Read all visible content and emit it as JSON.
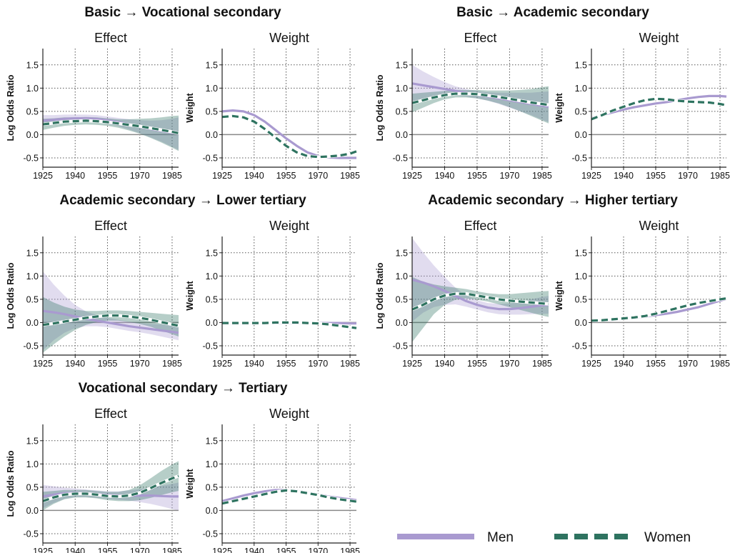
{
  "chart_data": {
    "type": "line",
    "x_ticks": [
      1925,
      1940,
      1955,
      1970,
      1985
    ],
    "y_ticks": [
      -0.5,
      0.0,
      0.5,
      1.0,
      1.5
    ],
    "y_tick_labels": [
      "-0.5",
      "0.0",
      "0.5",
      "1.0",
      "1.5"
    ],
    "xlim": [
      1925,
      1988
    ],
    "ylim": [
      -0.7,
      1.85
    ],
    "grid": "dotted",
    "colors": {
      "men": "#a99ad0",
      "women": "#2e7360"
    },
    "legend": {
      "position": "bottom-right",
      "items": [
        {
          "key": "men",
          "label": "Men",
          "style": "solid"
        },
        {
          "key": "women",
          "label": "Women",
          "style": "dashed"
        }
      ]
    },
    "x": [
      1925,
      1930,
      1935,
      1940,
      1945,
      1950,
      1955,
      1960,
      1965,
      1970,
      1975,
      1980,
      1985,
      1988
    ],
    "panels": [
      {
        "title": "Basic → Vocational secondary",
        "effect": {
          "subtitle": "Effect",
          "ylabel": "Log Odds Ratio",
          "men": [
            0.3,
            0.32,
            0.34,
            0.35,
            0.35,
            0.34,
            0.31,
            0.27,
            0.22,
            0.17,
            0.12,
            0.08,
            0.04,
            0.02
          ],
          "men_band": [
            0.12,
            0.1,
            0.09,
            0.08,
            0.08,
            0.08,
            0.08,
            0.09,
            0.11,
            0.14,
            0.18,
            0.23,
            0.3,
            0.35
          ],
          "women": [
            0.22,
            0.25,
            0.28,
            0.29,
            0.3,
            0.29,
            0.27,
            0.24,
            0.21,
            0.18,
            0.14,
            0.1,
            0.06,
            0.03
          ],
          "women_band": [
            0.12,
            0.1,
            0.09,
            0.08,
            0.08,
            0.08,
            0.08,
            0.09,
            0.12,
            0.16,
            0.21,
            0.27,
            0.34,
            0.38
          ]
        },
        "weight": {
          "subtitle": "Weight",
          "ylabel": "Weight",
          "men": [
            0.5,
            0.52,
            0.5,
            0.42,
            0.28,
            0.1,
            -0.08,
            -0.24,
            -0.38,
            -0.46,
            -0.49,
            -0.5,
            -0.5,
            -0.5
          ],
          "women": [
            0.38,
            0.4,
            0.37,
            0.28,
            0.12,
            -0.06,
            -0.24,
            -0.38,
            -0.46,
            -0.48,
            -0.47,
            -0.45,
            -0.41,
            -0.36
          ]
        }
      },
      {
        "title": "Basic → Academic secondary",
        "effect": {
          "subtitle": "Effect",
          "ylabel": "Log Odds Ratio",
          "men": [
            1.1,
            1.06,
            1.02,
            0.98,
            0.94,
            0.9,
            0.86,
            0.82,
            0.78,
            0.74,
            0.7,
            0.66,
            0.62,
            0.6
          ],
          "men_band": [
            0.4,
            0.3,
            0.22,
            0.15,
            0.1,
            0.08,
            0.08,
            0.09,
            0.12,
            0.16,
            0.2,
            0.24,
            0.3,
            0.33
          ],
          "women": [
            0.68,
            0.74,
            0.8,
            0.85,
            0.88,
            0.88,
            0.87,
            0.84,
            0.81,
            0.77,
            0.73,
            0.69,
            0.66,
            0.64
          ],
          "women_band": [
            0.2,
            0.16,
            0.12,
            0.09,
            0.08,
            0.08,
            0.09,
            0.11,
            0.14,
            0.18,
            0.23,
            0.29,
            0.36,
            0.4
          ]
        },
        "weight": {
          "subtitle": "Weight",
          "ylabel": "Weight",
          "men": [
            0.35,
            0.42,
            0.48,
            0.54,
            0.59,
            0.63,
            0.67,
            0.7,
            0.74,
            0.78,
            0.81,
            0.83,
            0.83,
            0.82
          ],
          "women": [
            0.33,
            0.42,
            0.52,
            0.6,
            0.68,
            0.74,
            0.77,
            0.76,
            0.73,
            0.71,
            0.7,
            0.69,
            0.66,
            0.63
          ]
        }
      },
      {
        "title": "Academic secondary → Lower tertiary",
        "effect": {
          "subtitle": "Effect",
          "ylabel": "Log Odds Ratio",
          "men": [
            0.25,
            0.22,
            0.18,
            0.13,
            0.08,
            0.04,
            0.0,
            -0.04,
            -0.08,
            -0.11,
            -0.14,
            -0.17,
            -0.2,
            -0.22
          ],
          "men_band": [
            0.85,
            0.6,
            0.4,
            0.25,
            0.16,
            0.12,
            0.1,
            0.1,
            0.1,
            0.1,
            0.11,
            0.13,
            0.15,
            0.16
          ],
          "women": [
            -0.05,
            -0.02,
            0.02,
            0.06,
            0.1,
            0.13,
            0.15,
            0.15,
            0.13,
            0.1,
            0.06,
            0.01,
            -0.04,
            -0.07
          ],
          "women_band": [
            0.6,
            0.45,
            0.32,
            0.22,
            0.15,
            0.12,
            0.11,
            0.11,
            0.12,
            0.13,
            0.15,
            0.18,
            0.21,
            0.23
          ]
        },
        "weight": {
          "subtitle": "Weight",
          "ylabel": "Weight",
          "men": [
            -0.02,
            -0.02,
            -0.02,
            -0.02,
            -0.01,
            -0.01,
            -0.01,
            -0.01,
            -0.01,
            -0.01,
            -0.01,
            -0.01,
            -0.02,
            -0.02
          ],
          "women": [
            -0.01,
            -0.01,
            -0.01,
            -0.01,
            -0.01,
            0.0,
            0.0,
            0.0,
            -0.01,
            -0.02,
            -0.04,
            -0.07,
            -0.1,
            -0.12
          ]
        }
      },
      {
        "title": "Academic secondary → Higher tertiary",
        "effect": {
          "subtitle": "Effect",
          "ylabel": "Log Odds Ratio",
          "men": [
            0.92,
            0.86,
            0.78,
            0.68,
            0.57,
            0.46,
            0.38,
            0.32,
            0.29,
            0.29,
            0.31,
            0.34,
            0.37,
            0.38
          ],
          "men_band": [
            0.9,
            0.65,
            0.45,
            0.3,
            0.18,
            0.12,
            0.1,
            0.1,
            0.11,
            0.12,
            0.14,
            0.16,
            0.18,
            0.19
          ],
          "women": [
            0.28,
            0.38,
            0.5,
            0.58,
            0.62,
            0.62,
            0.58,
            0.54,
            0.5,
            0.47,
            0.45,
            0.43,
            0.41,
            0.4
          ],
          "women_band": [
            0.7,
            0.5,
            0.32,
            0.2,
            0.13,
            0.1,
            0.09,
            0.09,
            0.11,
            0.14,
            0.18,
            0.22,
            0.26,
            0.28
          ]
        },
        "weight": {
          "subtitle": "Weight",
          "ylabel": "Weight",
          "men": [
            0.03,
            0.04,
            0.06,
            0.08,
            0.1,
            0.13,
            0.16,
            0.19,
            0.23,
            0.28,
            0.33,
            0.4,
            0.47,
            0.51
          ],
          "women": [
            0.04,
            0.05,
            0.07,
            0.09,
            0.11,
            0.14,
            0.19,
            0.25,
            0.31,
            0.37,
            0.42,
            0.46,
            0.5,
            0.52
          ]
        }
      },
      {
        "title": "Vocational secondary → Tertiary",
        "effect": {
          "subtitle": "Effect",
          "ylabel": "Log Odds Ratio",
          "men": [
            0.3,
            0.34,
            0.37,
            0.38,
            0.37,
            0.35,
            0.33,
            0.32,
            0.32,
            0.32,
            0.32,
            0.31,
            0.3,
            0.3
          ],
          "men_band": [
            0.25,
            0.18,
            0.12,
            0.09,
            0.08,
            0.08,
            0.08,
            0.09,
            0.11,
            0.14,
            0.18,
            0.22,
            0.27,
            0.3
          ],
          "women": [
            0.2,
            0.28,
            0.34,
            0.36,
            0.36,
            0.34,
            0.31,
            0.3,
            0.32,
            0.38,
            0.48,
            0.59,
            0.69,
            0.74
          ],
          "women_band": [
            0.2,
            0.14,
            0.1,
            0.08,
            0.08,
            0.08,
            0.09,
            0.1,
            0.12,
            0.16,
            0.21,
            0.26,
            0.3,
            0.32
          ]
        },
        "weight": {
          "subtitle": "Weight",
          "ylabel": "Weight",
          "men": [
            0.2,
            0.26,
            0.32,
            0.37,
            0.41,
            0.44,
            0.44,
            0.42,
            0.38,
            0.34,
            0.3,
            0.27,
            0.24,
            0.22
          ],
          "women": [
            0.15,
            0.2,
            0.25,
            0.3,
            0.35,
            0.4,
            0.43,
            0.41,
            0.37,
            0.33,
            0.28,
            0.24,
            0.21,
            0.19
          ]
        }
      }
    ]
  }
}
